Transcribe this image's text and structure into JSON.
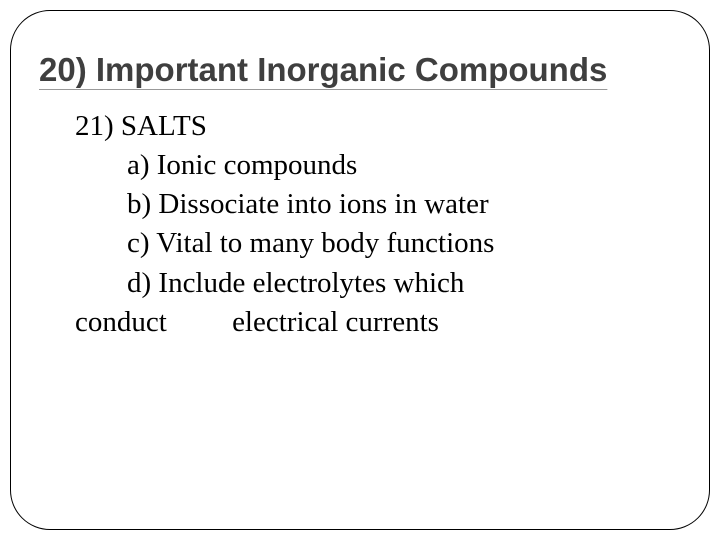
{
  "slide": {
    "title": "20) Important Inorganic Compounds",
    "subtitle": "21) SALTS",
    "items": {
      "a": "a) Ionic compounds",
      "b": "b) Dissociate into ions in water",
      "c": "c) Vital to many body functions",
      "d_line1": "d) Include electrolytes which",
      "d_line2_part1": "conduct",
      "d_line2_part2": "electrical currents"
    }
  },
  "style": {
    "background_color": "#ffffff",
    "border_color": "#000000",
    "border_radius": 40,
    "title_font": "Arial",
    "title_fontsize": 33,
    "title_color": "#3f3f3f",
    "body_font": "Times New Roman",
    "body_fontsize": 29,
    "body_color": "#000000",
    "underline_color": "#999999"
  }
}
